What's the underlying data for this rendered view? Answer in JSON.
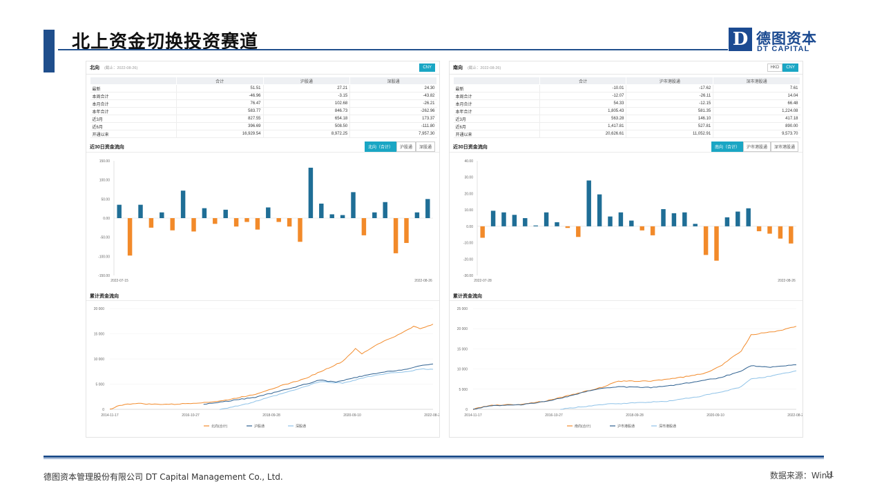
{
  "page": {
    "title": "北上资金切换投资赛道",
    "footer": "德图资本管理股份有限公司  DT Capital  Management  Co., Ltd.",
    "source": "数据来源：Wind",
    "page_number": "11",
    "accent": "#1f4e8c"
  },
  "logo": {
    "glyph": "D",
    "cn": "德图资本",
    "en": "DT CAPITAL"
  },
  "left": {
    "title": "北向",
    "date": "(截止：2022-08-26)",
    "currency": [
      "CNY"
    ],
    "currency_on": 0,
    "columns": [
      "",
      "合计",
      "沪股通",
      "深股通"
    ],
    "rows": [
      [
        "最新",
        "51.51",
        "27.21",
        "24.30"
      ],
      [
        "本周合计",
        "-46.96",
        "-3.15",
        "-43.82"
      ],
      [
        "本月合计",
        "76.47",
        "102.68",
        "-26.21"
      ],
      [
        "本年合计",
        "583.77",
        "846.73",
        "-262.96"
      ],
      [
        "近3月",
        "827.55",
        "654.18",
        "173.37"
      ],
      [
        "近6月",
        "396.69",
        "508.50",
        "-111.80"
      ],
      [
        "开通以来",
        "16,929.54",
        "8,972.25",
        "7,957.30"
      ]
    ],
    "bar_title": "近30日资金流向",
    "bar_tabs": [
      "北向（合计）",
      "沪股通",
      "深股通"
    ],
    "cum_title": "累计资金流向",
    "legend": [
      "北向(合计)",
      "沪股通",
      "深股通"
    ]
  },
  "right": {
    "title": "南向",
    "date": "(截止：2022-08-26)",
    "currency": [
      "HKD",
      "CNY"
    ],
    "currency_on": 1,
    "columns": [
      "",
      "合计",
      "沪市港股通",
      "深市港股通"
    ],
    "rows": [
      [
        "最新",
        "-10.01",
        "-17.62",
        "7.61"
      ],
      [
        "本周合计",
        "-12.07",
        "-26.11",
        "14.04"
      ],
      [
        "本月合计",
        "54.33",
        "-12.15",
        "66.48"
      ],
      [
        "本年合计",
        "1,805.43",
        "581.35",
        "1,224.08"
      ],
      [
        "近3月",
        "563.28",
        "146.10",
        "417.18"
      ],
      [
        "近6月",
        "1,417.81",
        "527.81",
        "890.00"
      ],
      [
        "开通以来",
        "20,626.61",
        "11,052.91",
        "9,573.70"
      ]
    ],
    "bar_title": "近30日资金流向",
    "bar_tabs": [
      "南向（合计）",
      "沪市港股通",
      "深市港股通"
    ],
    "cum_title": "累计资金流向",
    "legend": [
      "南向(合计)",
      "沪市港股通",
      "深市港股通"
    ]
  },
  "chart_data": [
    {
      "type": "bar",
      "title": "近30日资金流向",
      "x_start": "2022-07-15",
      "x_end": "2022-08-26",
      "ylim": [
        -150,
        150
      ],
      "yticks": [
        "150.00",
        "100.00",
        "50.00",
        "0.00",
        "-50.00",
        "-100.00",
        "-150.00"
      ],
      "pos_color": "#1f6e96",
      "neg_color": "#f28a2a",
      "values": [
        35,
        -98,
        35,
        -25,
        15,
        -32,
        72,
        -35,
        26,
        -15,
        22,
        -22,
        -10,
        -30,
        28,
        -10,
        -22,
        -62,
        132,
        38,
        10,
        8,
        68,
        -45,
        15,
        42,
        -92,
        -65,
        15,
        50
      ]
    },
    {
      "type": "bar",
      "title": "近30日资金流向",
      "x_start": "2022-07-28",
      "x_end": "2022-08-26",
      "ylim": [
        -30,
        40
      ],
      "yticks": [
        "40.00",
        "30.00",
        "20.00",
        "10.00",
        "0.00",
        "-10.00",
        "-20.00",
        "-30.00"
      ],
      "pos_color": "#1f6e96",
      "neg_color": "#f28a2a",
      "values": [
        -7,
        9.5,
        8.5,
        7,
        5,
        0.5,
        8.5,
        2.5,
        -1,
        -6.5,
        28,
        19.5,
        6,
        8.5,
        3.5,
        -2.5,
        -5.5,
        10.5,
        8,
        8.5,
        1.5,
        -17.5,
        -21,
        5.5,
        9,
        11,
        -3,
        -4.5,
        -7.5,
        -10.5
      ]
    },
    {
      "type": "line",
      "title": "累计资金流向",
      "xticks": [
        "2014-11-17",
        "2016-10-27",
        "2018-09-28",
        "2020-09-10",
        "2022-08-26"
      ],
      "ylim": [
        0,
        20000
      ],
      "yticks": [
        "20 000",
        "15 000",
        "10 000",
        "5 000",
        "0"
      ],
      "series": [
        {
          "name": "北向(合计)",
          "color": "#f28a2a",
          "points": [
            [
              0,
              0
            ],
            [
              0.03,
              800
            ],
            [
              0.08,
              1200
            ],
            [
              0.13,
              1000
            ],
            [
              0.2,
              1000
            ],
            [
              0.3,
              1400
            ],
            [
              0.35,
              1700
            ],
            [
              0.45,
              3000
            ],
            [
              0.52,
              4500
            ],
            [
              0.6,
              6000
            ],
            [
              0.67,
              8000
            ],
            [
              0.72,
              9500
            ],
            [
              0.76,
              12000
            ],
            [
              0.78,
              11000
            ],
            [
              0.83,
              13000
            ],
            [
              0.9,
              15000
            ],
            [
              0.94,
              16500
            ],
            [
              0.96,
              16000
            ],
            [
              1,
              16900
            ]
          ]
        },
        {
          "name": "沪股通",
          "color": "#2c5f8f",
          "points": [
            [
              0.29,
              1000
            ],
            [
              0.35,
              1500
            ],
            [
              0.45,
              2400
            ],
            [
              0.55,
              4000
            ],
            [
              0.65,
              5800
            ],
            [
              0.7,
              5400
            ],
            [
              0.78,
              6600
            ],
            [
              0.85,
              7400
            ],
            [
              0.92,
              8000
            ],
            [
              0.96,
              8600
            ],
            [
              1,
              9000
            ]
          ]
        },
        {
          "name": "深股通",
          "color": "#8ec2e8",
          "points": [
            [
              0.34,
              0
            ],
            [
              0.42,
              1000
            ],
            [
              0.5,
              2500
            ],
            [
              0.58,
              4000
            ],
            [
              0.65,
              5500
            ],
            [
              0.72,
              5200
            ],
            [
              0.8,
              6500
            ],
            [
              0.87,
              7200
            ],
            [
              0.93,
              7600
            ],
            [
              0.97,
              8000
            ],
            [
              1,
              7950
            ]
          ]
        }
      ]
    },
    {
      "type": "line",
      "title": "累计资金流向",
      "xticks": [
        "2014-11-17",
        "2016-10-27",
        "2018-09-28",
        "2020-09-10",
        "2022-08-26"
      ],
      "ylim": [
        0,
        25000
      ],
      "yticks": [
        "25 000",
        "20 000",
        "15 000",
        "10 000",
        "5 000",
        "0"
      ],
      "series": [
        {
          "name": "南向(合计)",
          "color": "#f28a2a",
          "points": [
            [
              0,
              0
            ],
            [
              0.05,
              1000
            ],
            [
              0.14,
              1200
            ],
            [
              0.22,
              2000
            ],
            [
              0.3,
              3500
            ],
            [
              0.4,
              5500
            ],
            [
              0.45,
              7000
            ],
            [
              0.55,
              7000
            ],
            [
              0.65,
              8000
            ],
            [
              0.72,
              9000
            ],
            [
              0.77,
              11000
            ],
            [
              0.83,
              14500
            ],
            [
              0.86,
              18500
            ],
            [
              0.9,
              19000
            ],
            [
              0.95,
              19500
            ],
            [
              1,
              20600
            ]
          ]
        },
        {
          "name": "沪市港股通",
          "color": "#2c5f8f",
          "points": [
            [
              0,
              0
            ],
            [
              0.05,
              900
            ],
            [
              0.14,
              1100
            ],
            [
              0.22,
              1900
            ],
            [
              0.3,
              3300
            ],
            [
              0.38,
              5000
            ],
            [
              0.45,
              5600
            ],
            [
              0.55,
              5400
            ],
            [
              0.62,
              6000
            ],
            [
              0.7,
              7000
            ],
            [
              0.76,
              7800
            ],
            [
              0.82,
              9200
            ],
            [
              0.86,
              10800
            ],
            [
              0.92,
              10500
            ],
            [
              1,
              11050
            ]
          ]
        },
        {
          "name": "深市港股通",
          "color": "#8ec2e8",
          "points": [
            [
              0.27,
              0
            ],
            [
              0.3,
              300
            ],
            [
              0.4,
              1200
            ],
            [
              0.5,
              1600
            ],
            [
              0.6,
              2000
            ],
            [
              0.7,
              3200
            ],
            [
              0.78,
              4500
            ],
            [
              0.83,
              5600
            ],
            [
              0.86,
              7600
            ],
            [
              0.92,
              8200
            ],
            [
              1,
              9570
            ]
          ]
        }
      ]
    }
  ]
}
